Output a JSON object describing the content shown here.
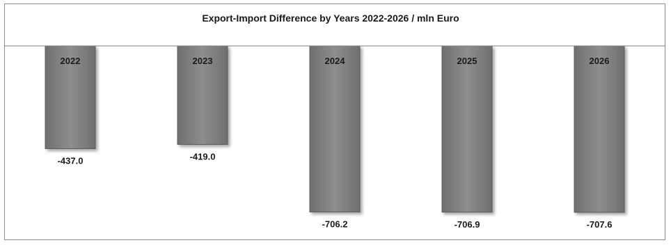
{
  "chart_data": {
    "type": "bar",
    "title": "Export-Import Difference by Years 2022-2026 / mln Euro",
    "categories": [
      "2022",
      "2023",
      "2024",
      "2025",
      "2026"
    ],
    "values": [
      -437.0,
      -419.0,
      -706.2,
      -706.9,
      -707.6
    ],
    "data_labels": [
      "-437.0",
      "-419.0",
      "-706.2",
      "-706.9",
      "-707.6"
    ],
    "ylim": [
      -707.6,
      0
    ],
    "grid": false,
    "legend": "none",
    "xlabel": "",
    "ylabel": "",
    "colors": {
      "bar": "#808080",
      "bar_edge": "#5a5a5a",
      "axis": "#7f7f7f"
    }
  }
}
